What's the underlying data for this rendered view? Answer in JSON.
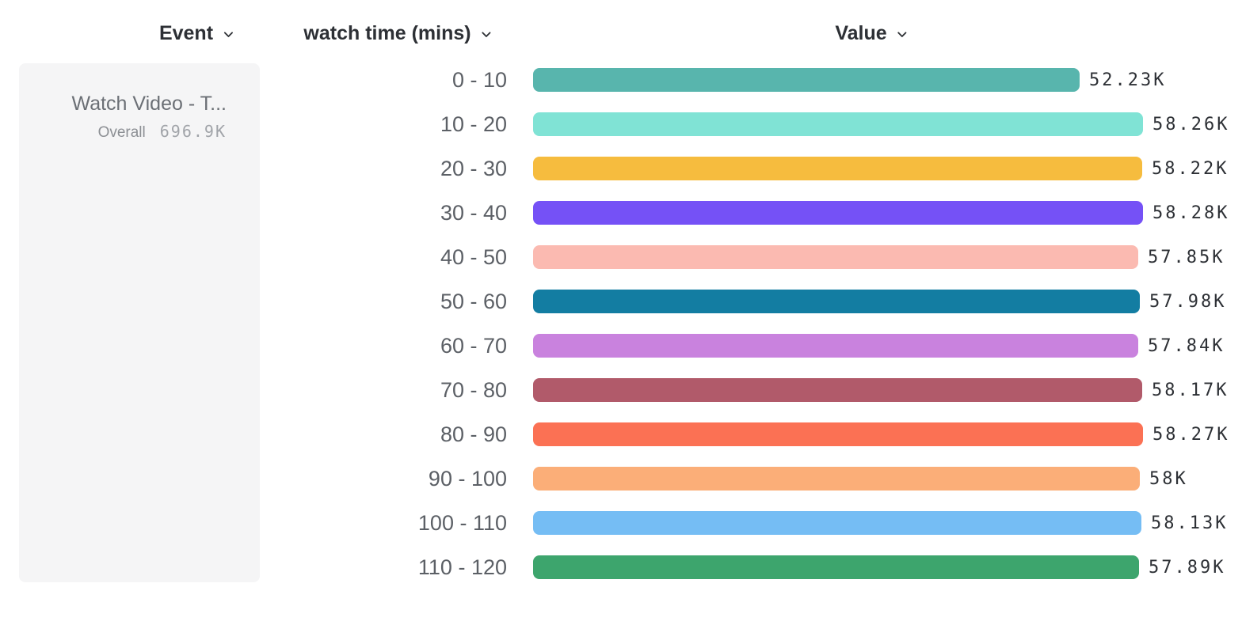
{
  "table": {
    "columns": [
      {
        "id": "event",
        "label": "Event"
      },
      {
        "id": "breakdown",
        "label": "watch time (mins)"
      },
      {
        "id": "value",
        "label": "Value"
      }
    ]
  },
  "event_panel": {
    "title": "Watch Video - T...",
    "overall_label": "Overall",
    "overall_value": "696.9K"
  },
  "icons": {
    "column_dropdown": "chevron-down-icon"
  },
  "colors": {
    "header_text": "#2D3035",
    "category_text": "#5C6066",
    "value_text": "#2D3035",
    "panel_bg": "#F5F5F6",
    "panel_title_text": "#6B6F75",
    "overall_label_text": "#8C8F94",
    "overall_value_text": "#A1A4A9"
  },
  "chart_data": {
    "type": "bar",
    "orientation": "horizontal",
    "title": "",
    "category_axis_label": "watch time (mins)",
    "value_axis_label": "Value",
    "categories": [
      "0 - 10",
      "10 - 20",
      "20 - 30",
      "30 - 40",
      "40 - 50",
      "50 - 60",
      "60 - 70",
      "70 - 80",
      "80 - 90",
      "90 - 100",
      "100 - 110",
      "110 - 120"
    ],
    "values": [
      52230,
      58260,
      58220,
      58280,
      57850,
      57980,
      57840,
      58170,
      58270,
      58000,
      58130,
      57890
    ],
    "value_labels": [
      "52.23K",
      "58.26K",
      "58.22K",
      "58.28K",
      "57.85K",
      "57.98K",
      "57.84K",
      "58.17K",
      "58.27K",
      "58K",
      "58.13K",
      "57.89K"
    ],
    "bar_colors": [
      "#58B5AD",
      "#80E3D5",
      "#F6BC3E",
      "#7551F6",
      "#FBBAB1",
      "#137DA2",
      "#C982DE",
      "#B15A6A",
      "#FB7154",
      "#FBAE78",
      "#75BDF4",
      "#3DA56D"
    ],
    "xlim": [
      0,
      58280
    ],
    "grid": false,
    "legend": false
  }
}
